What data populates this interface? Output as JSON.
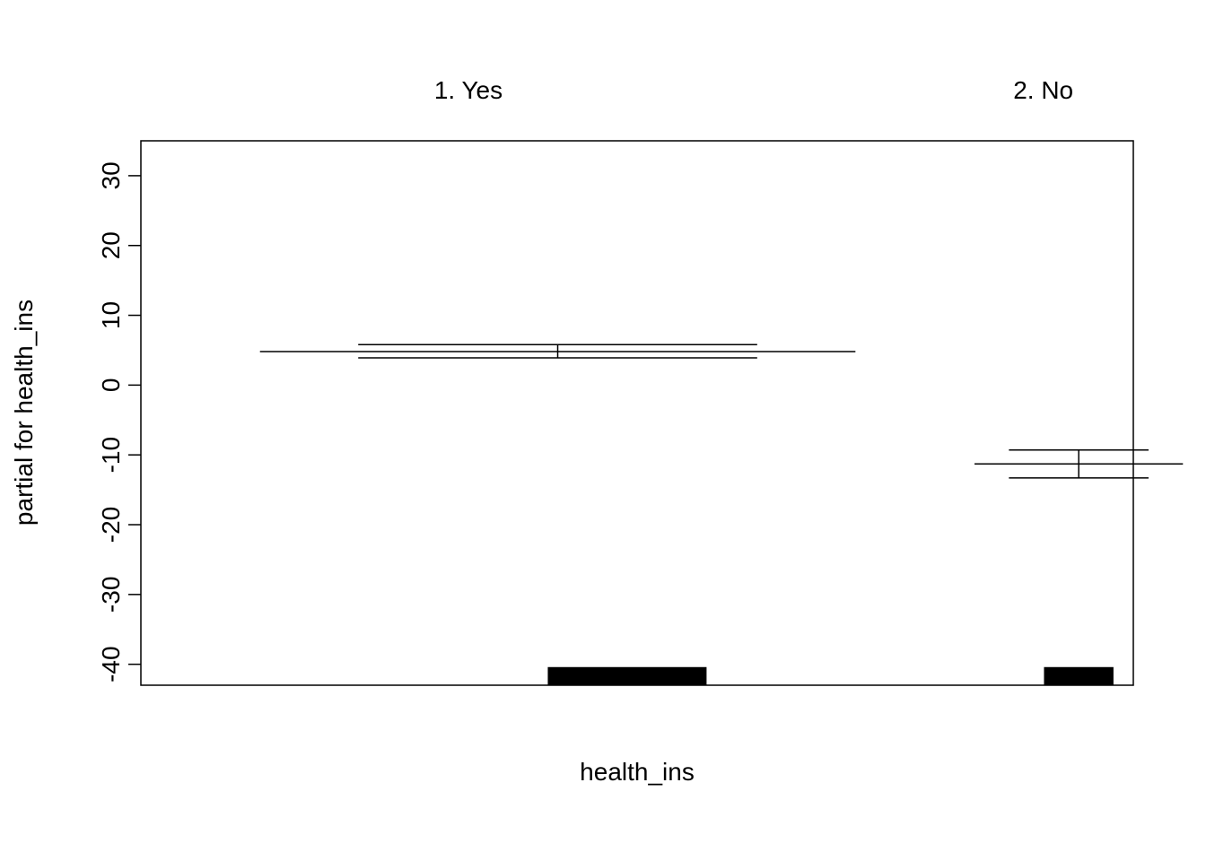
{
  "chart_data": {
    "type": "termplot",
    "xlabel": "health_ins",
    "ylabel": "partial for health_ins",
    "categories": [
      {
        "label": "1. Yes",
        "x_start": 0.0,
        "x_end": 0.6,
        "fit": 4.8,
        "se_upper": 5.8,
        "se_lower": 3.9,
        "rug_start": 0.29,
        "rug_end": 0.45
      },
      {
        "label": "2. No",
        "x_start": 0.72,
        "x_end": 0.93,
        "fit": -11.3,
        "se_upper": -9.3,
        "se_lower": -13.3,
        "rug_start": 0.79,
        "rug_end": 0.86
      }
    ],
    "xlim": [
      -0.12,
      0.88
    ],
    "ylim": [
      -43,
      35
    ],
    "y_ticks": [
      "-40",
      "-30",
      "-20",
      "-10",
      "0",
      "10",
      "20",
      "30"
    ],
    "colors": {
      "line": "#000000",
      "rug": "#000000",
      "frame": "#000000"
    }
  }
}
